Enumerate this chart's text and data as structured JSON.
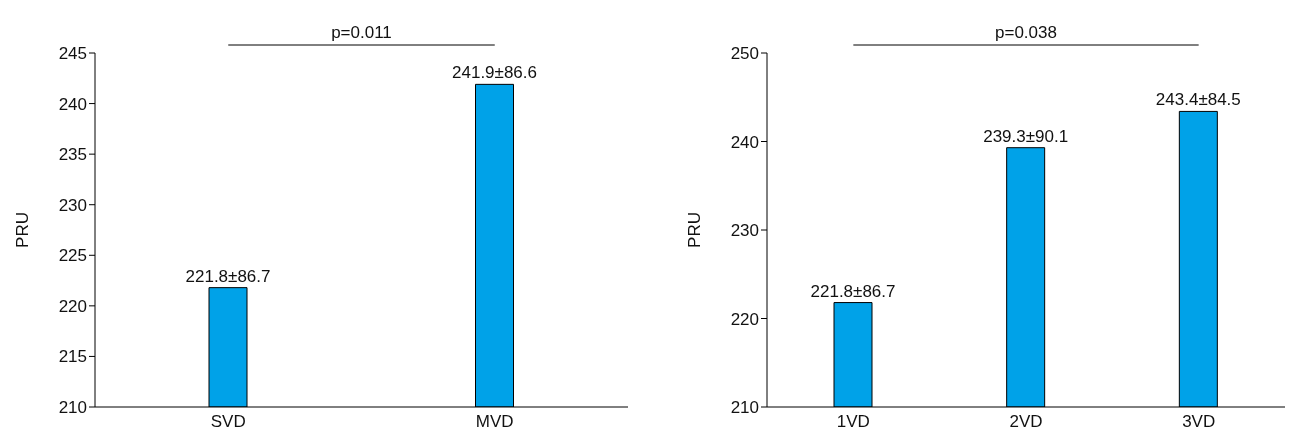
{
  "chart_data": [
    {
      "type": "bar",
      "categories": [
        "SVD",
        "MVD"
      ],
      "values": [
        221.8,
        241.9
      ],
      "value_labels": [
        "221.8±86.7",
        "241.9±86.6"
      ],
      "color": "#00a2e8",
      "ylabel": "PRU",
      "ylim": [
        210,
        245
      ],
      "yticks": [
        210,
        215,
        220,
        225,
        230,
        235,
        240,
        245
      ],
      "annotations": [
        "p=0.011"
      ]
    },
    {
      "type": "bar",
      "categories": [
        "1VD",
        "2VD",
        "3VD"
      ],
      "values": [
        221.8,
        239.3,
        243.4
      ],
      "value_labels": [
        "221.8±86.7",
        "239.3±90.1",
        "243.4±84.5"
      ],
      "color": "#00a2e8",
      "ylabel": "PRU",
      "ylim": [
        210,
        250
      ],
      "yticks": [
        210,
        220,
        230,
        240,
        250
      ],
      "annotations": [
        "p=0.038"
      ]
    }
  ]
}
